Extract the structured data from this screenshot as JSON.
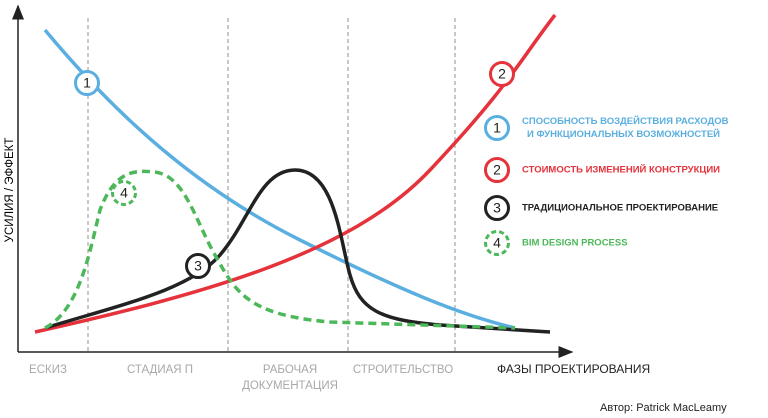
{
  "y_axis_label": "УСИЛИЯ / ЭФФЕКТ",
  "x_axis_label": "ФАЗЫ ПРОЕКТИРОВАНИЯ",
  "phases": [
    [
      "ЕСКИЗ"
    ],
    [
      "СТАДИАЯ П"
    ],
    [
      "РАБОЧАЯ",
      "ДОКУМЕНТАЦИЯ"
    ],
    [
      "СТРОИТЕЛЬСТВО"
    ]
  ],
  "curves": [
    {
      "number": "1",
      "label": [
        "СПОСОБНОСТЬ ВОЗДЕЙСТВИЯ РАСХОДОВ",
        "И ФУНКЦИОНАЛЬНЫХ ВОЗМОЖНОСТЕЙ"
      ]
    },
    {
      "number": "2",
      "label": [
        "СТОИМОСТЬ ИЗМЕНЕНИЙ КОНСТРУКЦИИ"
      ]
    },
    {
      "number": "3",
      "label": [
        "ТРАДИЦИОНАЛЬНОЕ ПРОЕКТИРОВАНИЕ"
      ]
    },
    {
      "number": "4",
      "label": [
        "BIM DESIGN PROCESS"
      ]
    }
  ],
  "credit": "Автор: Patrick MacLeamy"
}
